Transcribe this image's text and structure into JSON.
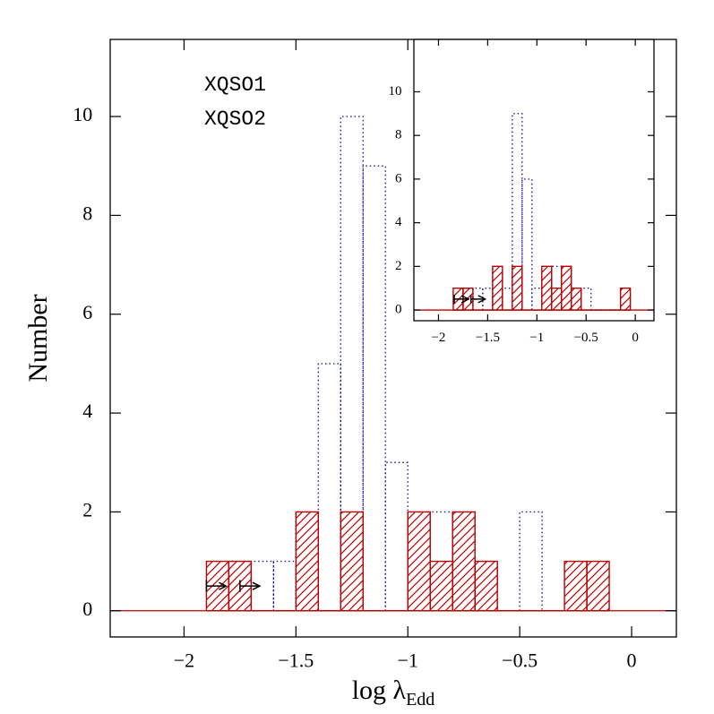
{
  "chart_data": [
    {
      "type": "histogram",
      "xlabel": "log λ",
      "xlabel_sub": "Edd",
      "ylabel": "Number",
      "xlim": [
        -2.33,
        0.2
      ],
      "ylim": [
        -0.53,
        11.56
      ],
      "xticks": [
        {
          "value": -2,
          "label": "−2"
        },
        {
          "value": -1.5,
          "label": "−1.5"
        },
        {
          "value": -1,
          "label": "−1"
        },
        {
          "value": -0.5,
          "label": "−0.5"
        },
        0
      ],
      "yticks": [
        0,
        2,
        4,
        6,
        8,
        10
      ],
      "bins": [
        -1.9,
        -1.8,
        -1.7,
        -1.6,
        -1.5,
        -1.4,
        -1.3,
        -1.2,
        -1.1,
        -1.0,
        -0.9,
        -0.8,
        -0.7,
        -0.6,
        -0.5,
        -0.4,
        -0.3,
        -0.2,
        -0.1
      ],
      "series": [
        {
          "name": "XQSO1",
          "color": "#1c1c9e",
          "style": "dotted",
          "values": [
            0,
            1,
            1,
            1,
            2,
            5,
            10,
            9,
            3,
            2,
            2,
            2,
            1,
            0,
            2,
            0,
            0,
            0
          ]
        },
        {
          "name": "XQSO2",
          "color": "#bb0000",
          "style": "hatched",
          "values": [
            1,
            1,
            0,
            0,
            2,
            0,
            2,
            0,
            0,
            2,
            1,
            2,
            1,
            0,
            0,
            0,
            1,
            1
          ]
        }
      ],
      "lower_limits": {
        "x": [
          -1.9,
          -1.75
        ],
        "y": [
          0.5,
          0.5
        ]
      }
    },
    {
      "type": "histogram",
      "xlim": [
        -2.25,
        0.19
      ],
      "ylim": [
        -0.49,
        12.4
      ],
      "xticks": [
        {
          "value": -2,
          "label": "−2"
        },
        {
          "value": -1.5,
          "label": "−1.5"
        },
        {
          "value": -1,
          "label": "−1"
        },
        {
          "value": -0.5,
          "label": "−0.5"
        },
        0
      ],
      "yticks": [
        0,
        2,
        4,
        6,
        8,
        10
      ],
      "bins": [
        -1.85,
        -1.75,
        -1.65,
        -1.55,
        -1.45,
        -1.35,
        -1.25,
        -1.15,
        -1.05,
        -0.95,
        -0.85,
        -0.75,
        -0.65,
        -0.55,
        -0.45,
        -0.35,
        -0.25,
        -0.15,
        -0.05
      ],
      "series": [
        {
          "color": "#1c1c9e",
          "style": "dotted",
          "values": [
            0,
            1,
            1,
            1,
            2,
            1,
            9,
            6,
            1,
            2,
            2,
            2,
            1,
            1,
            0,
            0,
            0,
            0
          ]
        },
        {
          "color": "#bb0000",
          "style": "hatched",
          "values": [
            1,
            1,
            0,
            0,
            2,
            0,
            2,
            0,
            0,
            2,
            1,
            2,
            1,
            0,
            0,
            0,
            0,
            1
          ]
        }
      ],
      "lower_limits": {
        "x": [
          -1.84,
          -1.67
        ],
        "y": [
          0.5,
          0.5
        ]
      }
    }
  ]
}
